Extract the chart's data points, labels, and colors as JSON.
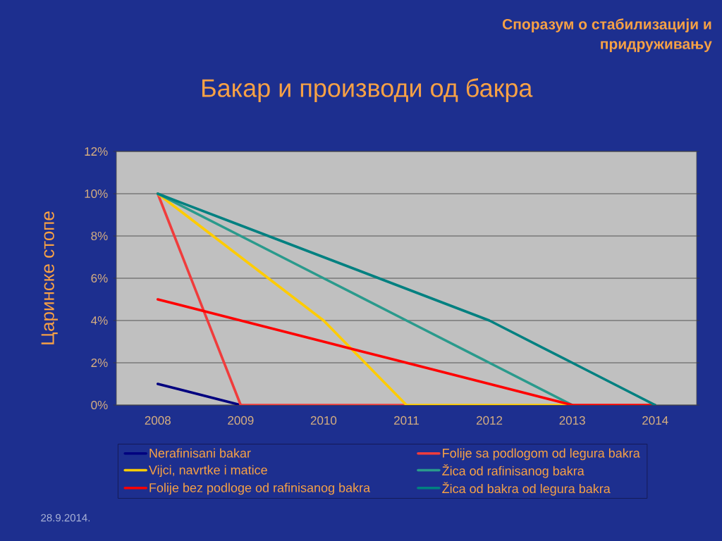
{
  "chart_data": {
    "type": "line",
    "title": "Бакар и производи од бакра",
    "subtitle": "Споразум о стабилизацији и придруживању",
    "ylabel": "Царинске стопе",
    "annotations": [
      "28.9.2014."
    ],
    "categories": [
      "2008",
      "2009",
      "2010",
      "2011",
      "2012",
      "2013",
      "2014"
    ],
    "ylim": [
      0,
      12
    ],
    "yticks": [
      {
        "value": 0,
        "label": "0%"
      },
      {
        "value": 2,
        "label": "2%"
      },
      {
        "value": 4,
        "label": "4%"
      },
      {
        "value": 6,
        "label": "6%"
      },
      {
        "value": 8,
        "label": "8%"
      },
      {
        "value": 10,
        "label": "10%"
      },
      {
        "value": 12,
        "label": "12%"
      }
    ],
    "grid": "y",
    "legend": "bottom",
    "series": [
      {
        "name": "Nerafinisani bakar",
        "color": "#00007F",
        "values": [
          1,
          0,
          null,
          null,
          null,
          null,
          null
        ]
      },
      {
        "name": "Folije sa podlogom od legura bakra",
        "color": "#F03C3C",
        "values": [
          10,
          0,
          0,
          0,
          null,
          null,
          null
        ]
      },
      {
        "name": "Vijci, navrtke i matice",
        "color": "#FFCC00",
        "values": [
          10,
          7,
          4,
          0,
          0,
          0,
          null
        ]
      },
      {
        "name": "Žica od rafinisanog bakra",
        "color": "#2A9A8C",
        "values": [
          10,
          8,
          6,
          4,
          2,
          0,
          null
        ]
      },
      {
        "name": "Folije bez podloge od rafinisanog bakra",
        "color": "#FF0000",
        "values": [
          5,
          4,
          3,
          2,
          1,
          0,
          0
        ]
      },
      {
        "name": "Žica od bakra od legura bakra",
        "color": "#008080",
        "values": [
          10,
          8.5,
          7,
          5.5,
          4,
          2,
          0
        ]
      }
    ]
  }
}
